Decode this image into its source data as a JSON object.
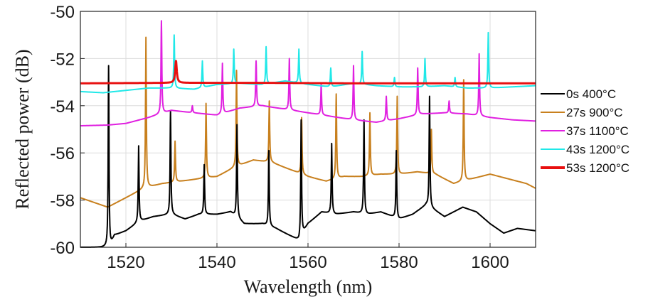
{
  "chart_data": {
    "type": "line",
    "title": "",
    "xlabel": "Wavelength (nm)",
    "ylabel": "Reflected power (dB)",
    "xlim": [
      1510,
      1610
    ],
    "ylim": [
      -60,
      -50
    ],
    "xticks": [
      1520,
      1540,
      1560,
      1580,
      1600
    ],
    "yticks": [
      -60,
      -58,
      -56,
      -54,
      -52,
      -50
    ],
    "grid": true,
    "legend_position": "right",
    "series": [
      {
        "name": "0s 400°C",
        "color": "#000000",
        "peaks": [
          [
            1516.2,
            -52.3
          ],
          [
            1522.8,
            -55.7
          ],
          [
            1529.8,
            -54.2
          ],
          [
            1537.2,
            -56.5
          ],
          [
            1544.4,
            -54.8
          ],
          [
            1551.4,
            -55.9
          ],
          [
            1558.5,
            -54.6
          ],
          [
            1565.2,
            -55.6
          ],
          [
            1572.3,
            -54.6
          ],
          [
            1579.4,
            -55.9
          ],
          [
            1586.7,
            -53.6
          ]
        ],
        "baseline": [
          [
            1510,
            -60.0
          ],
          [
            1516.5,
            -60.0
          ],
          [
            1517.5,
            -59.5
          ],
          [
            1520,
            -59.3
          ],
          [
            1523,
            -58.9
          ],
          [
            1526,
            -58.7
          ],
          [
            1530,
            -58.6
          ],
          [
            1533,
            -58.8
          ],
          [
            1536,
            -58.6
          ],
          [
            1540,
            -58.6
          ],
          [
            1543,
            -58.5
          ],
          [
            1546,
            -59.0
          ],
          [
            1550,
            -59.0
          ],
          [
            1553,
            -59.2
          ],
          [
            1556,
            -59.5
          ],
          [
            1558,
            -59.7
          ],
          [
            1560,
            -59.0
          ],
          [
            1563,
            -58.5
          ],
          [
            1566,
            -58.6
          ],
          [
            1570,
            -58.5
          ],
          [
            1573,
            -58.6
          ],
          [
            1576,
            -58.5
          ],
          [
            1580,
            -58.8
          ],
          [
            1583,
            -58.6
          ],
          [
            1586,
            -58.2
          ],
          [
            1590,
            -58.7
          ],
          [
            1594,
            -58.3
          ],
          [
            1597,
            -58.5
          ],
          [
            1600,
            -59.0
          ],
          [
            1603,
            -59.4
          ],
          [
            1606,
            -59.2
          ],
          [
            1610,
            -59.3
          ]
        ]
      },
      {
        "name": "27s 900°C",
        "color": "#c8801e",
        "peaks": [
          [
            1524.4,
            -51.1
          ],
          [
            1530.8,
            -55.5
          ],
          [
            1537.6,
            -53.9
          ],
          [
            1544.3,
            -52.5
          ],
          [
            1551.5,
            -53.8
          ],
          [
            1558.6,
            -54.5
          ],
          [
            1566.2,
            -53.5
          ],
          [
            1573.6,
            -54.3
          ],
          [
            1579.6,
            -53.6
          ],
          [
            1587.1,
            -55.0
          ],
          [
            1594.2,
            -52.9
          ]
        ],
        "baseline": [
          [
            1510,
            -57.9
          ],
          [
            1513,
            -58.1
          ],
          [
            1516,
            -58.3
          ],
          [
            1520,
            -57.9
          ],
          [
            1524,
            -57.5
          ],
          [
            1528,
            -57.3
          ],
          [
            1532,
            -57.2
          ],
          [
            1536,
            -57.1
          ],
          [
            1540,
            -57.0
          ],
          [
            1544,
            -56.6
          ],
          [
            1548,
            -56.3
          ],
          [
            1552,
            -56.4
          ],
          [
            1556,
            -56.7
          ],
          [
            1560,
            -57.0
          ],
          [
            1564,
            -57.2
          ],
          [
            1568,
            -57.0
          ],
          [
            1572,
            -57.0
          ],
          [
            1576,
            -56.9
          ],
          [
            1580,
            -56.9
          ],
          [
            1584,
            -56.8
          ],
          [
            1588,
            -56.9
          ],
          [
            1592,
            -57.3
          ],
          [
            1596,
            -57.1
          ],
          [
            1600,
            -56.9
          ],
          [
            1604,
            -57.1
          ],
          [
            1608,
            -57.3
          ],
          [
            1610,
            -57.5
          ]
        ]
      },
      {
        "name": "37s 1100°C",
        "color": "#e020e0",
        "peaks": [
          [
            1527.8,
            -50.4
          ],
          [
            1534.6,
            -54.0
          ],
          [
            1541.2,
            -52.2
          ],
          [
            1548.6,
            -52.1
          ],
          [
            1555.9,
            -52.0
          ],
          [
            1562.9,
            -53.1
          ],
          [
            1570.0,
            -52.3
          ],
          [
            1577.2,
            -53.6
          ],
          [
            1584.1,
            -52.4
          ],
          [
            1591.0,
            -53.8
          ],
          [
            1597.6,
            -51.8
          ]
        ],
        "baseline": [
          [
            1510,
            -54.85
          ],
          [
            1516,
            -54.82
          ],
          [
            1520,
            -54.75
          ],
          [
            1525,
            -54.5
          ],
          [
            1530,
            -54.2
          ],
          [
            1535,
            -54.3
          ],
          [
            1540,
            -54.4
          ],
          [
            1545,
            -54.1
          ],
          [
            1550,
            -54.0
          ],
          [
            1555,
            -54.15
          ],
          [
            1560,
            -54.3
          ],
          [
            1565,
            -54.45
          ],
          [
            1570,
            -54.6
          ],
          [
            1575,
            -54.7
          ],
          [
            1580,
            -54.55
          ],
          [
            1585,
            -54.35
          ],
          [
            1590,
            -54.3
          ],
          [
            1595,
            -54.35
          ],
          [
            1600,
            -54.5
          ],
          [
            1605,
            -54.6
          ],
          [
            1610,
            -54.65
          ]
        ]
      },
      {
        "name": "43s 1200°C",
        "color": "#20e8e8",
        "peaks": [
          [
            1530.6,
            -51.0
          ],
          [
            1536.8,
            -52.1
          ],
          [
            1543.7,
            -51.6
          ],
          [
            1550.8,
            -51.5
          ],
          [
            1558.0,
            -51.6
          ],
          [
            1565.0,
            -52.4
          ],
          [
            1571.9,
            -51.7
          ],
          [
            1579.0,
            -52.8
          ],
          [
            1585.7,
            -52.0
          ],
          [
            1592.3,
            -52.8
          ],
          [
            1599.6,
            -50.9
          ]
        ],
        "baseline": [
          [
            1510,
            -53.4
          ],
          [
            1515,
            -53.45
          ],
          [
            1520,
            -53.35
          ],
          [
            1525,
            -53.25
          ],
          [
            1530,
            -53.25
          ],
          [
            1535,
            -53.3
          ],
          [
            1540,
            -53.1
          ],
          [
            1545,
            -53.05
          ],
          [
            1550,
            -53.1
          ],
          [
            1555,
            -52.95
          ],
          [
            1560,
            -53.1
          ],
          [
            1565,
            -53.2
          ],
          [
            1570,
            -53.05
          ],
          [
            1575,
            -53.15
          ],
          [
            1580,
            -53.2
          ],
          [
            1585,
            -53.2
          ],
          [
            1590,
            -53.15
          ],
          [
            1595,
            -53.25
          ],
          [
            1600,
            -53.25
          ],
          [
            1605,
            -53.2
          ],
          [
            1610,
            -53.15
          ]
        ]
      },
      {
        "name": "53s 1200°C",
        "color": "#e81010",
        "peaks": [
          [
            1531.0,
            -52.1
          ]
        ],
        "baseline": [
          [
            1510,
            -53.05
          ],
          [
            1530,
            -53.03
          ],
          [
            1550,
            -53.03
          ],
          [
            1570,
            -53.05
          ],
          [
            1590,
            -53.05
          ],
          [
            1610,
            -53.05
          ]
        ]
      }
    ]
  }
}
